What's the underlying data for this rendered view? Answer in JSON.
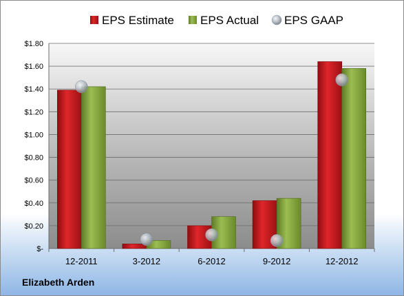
{
  "company": "Elizabeth Arden",
  "chart_data": {
    "type": "bar",
    "categories": [
      "12-2011",
      "3-2012",
      "6-2012",
      "9-2012",
      "12-2012"
    ],
    "series": [
      {
        "name": "EPS Estimate",
        "type": "bar",
        "color": "#c8181c",
        "values": [
          1.39,
          0.04,
          0.2,
          0.42,
          1.64
        ]
      },
      {
        "name": "EPS Actual",
        "type": "bar",
        "color": "#7f9f3a",
        "values": [
          1.42,
          0.07,
          0.28,
          0.44,
          1.58
        ]
      },
      {
        "name": "EPS GAAP",
        "type": "scatter",
        "color": "#a9b1bb",
        "values": [
          1.42,
          0.08,
          0.12,
          0.07,
          1.48
        ]
      }
    ],
    "ylim": [
      0,
      1.8
    ],
    "yticks": [
      0,
      0.2,
      0.4,
      0.6,
      0.8,
      1.0,
      1.2,
      1.4,
      1.6,
      1.8
    ],
    "ytick_labels": [
      "$-",
      "$0.20",
      "$0.40",
      "$0.60",
      "$0.80",
      "$1.00",
      "$1.20",
      "$1.40",
      "$1.60",
      "$1.80"
    ],
    "legend_position": "top",
    "grid": true
  }
}
